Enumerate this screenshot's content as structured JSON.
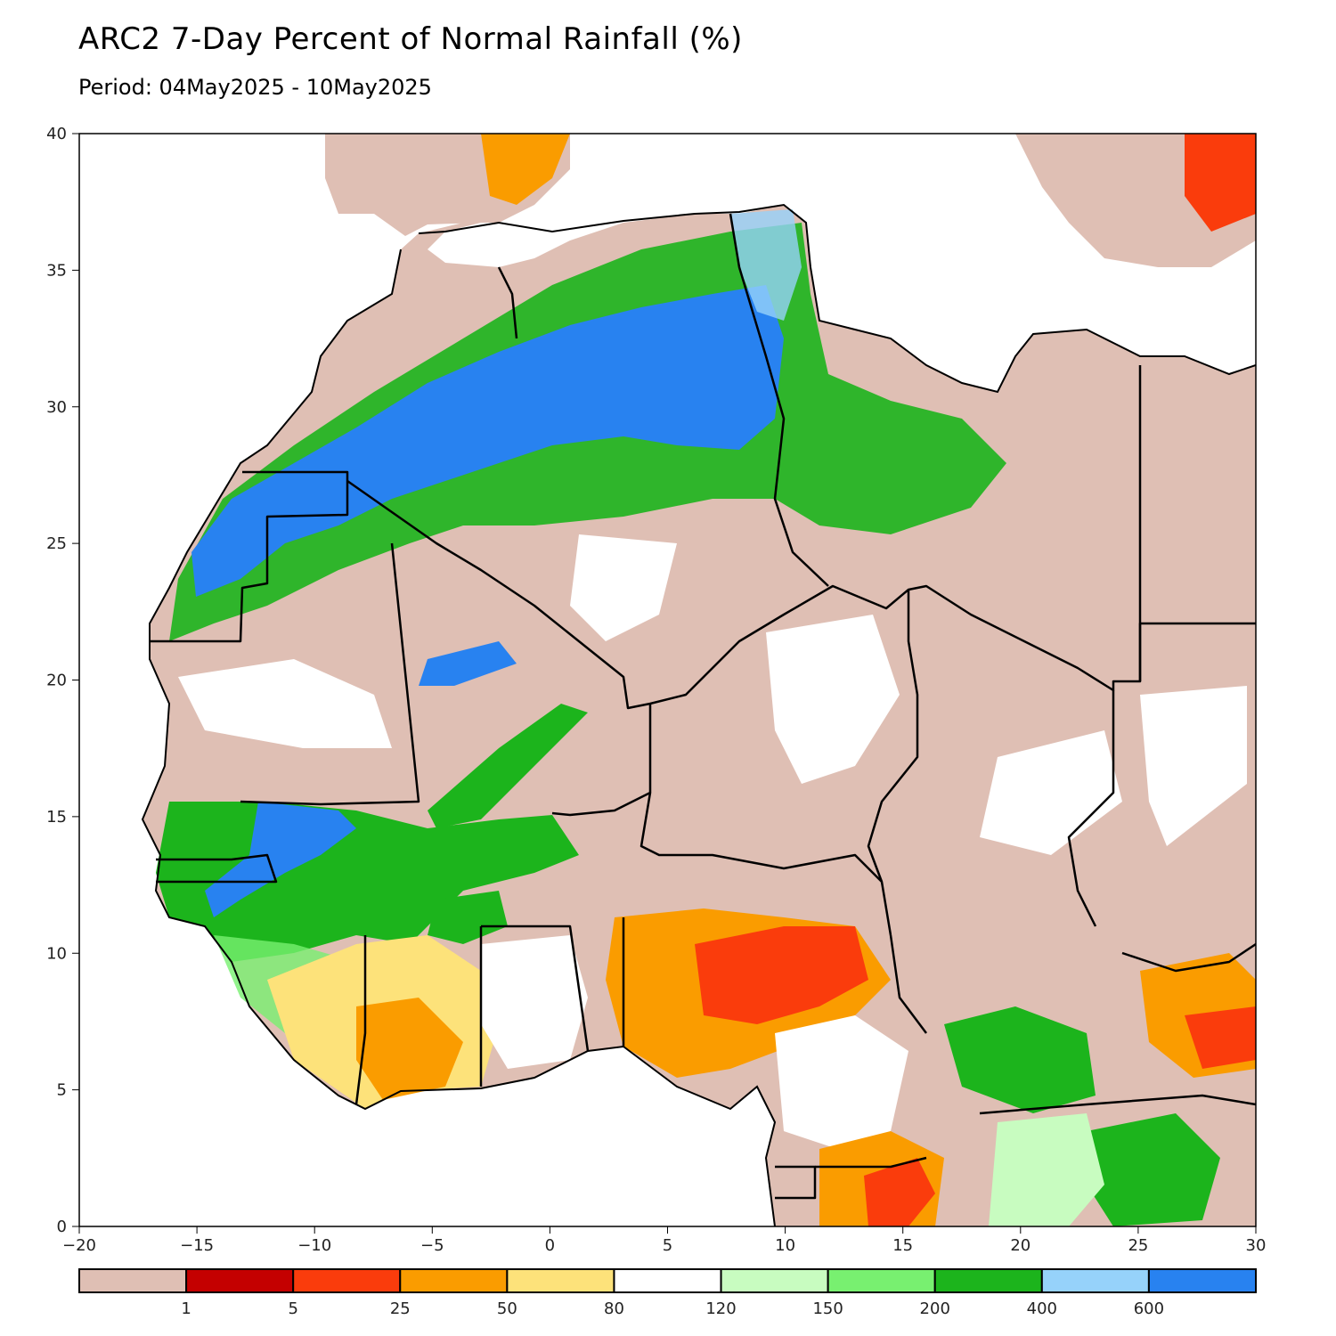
{
  "title": "ARC2 7-Day Percent of Normal Rainfall (%)",
  "subtitle": "Period: 04May2025 - 10May2025",
  "axes": {
    "x_ticks": [
      "−20",
      "−15",
      "−10",
      "−5",
      "0",
      "5",
      "10",
      "15",
      "20",
      "25",
      "30"
    ],
    "y_ticks": [
      "0",
      "5",
      "10",
      "15",
      "20",
      "25",
      "30",
      "35",
      "40"
    ],
    "lon_range": [
      -20,
      30
    ],
    "lat_range": [
      0,
      40
    ]
  },
  "legend": {
    "colors": [
      "#dfbfb4",
      "#c40000",
      "#fa3c0c",
      "#fa9c00",
      "#fde27a",
      "#ffffff",
      "#c8fcc0",
      "#78f070",
      "#1cb41c",
      "#96d2fa",
      "#2882f0"
    ],
    "labels": [
      "1",
      "5",
      "25",
      "50",
      "80",
      "120",
      "150",
      "200",
      "400",
      "600"
    ]
  },
  "colors": {
    "land_dry": "#dfbfb4",
    "sea": "#ffffff",
    "border": "#000000"
  }
}
